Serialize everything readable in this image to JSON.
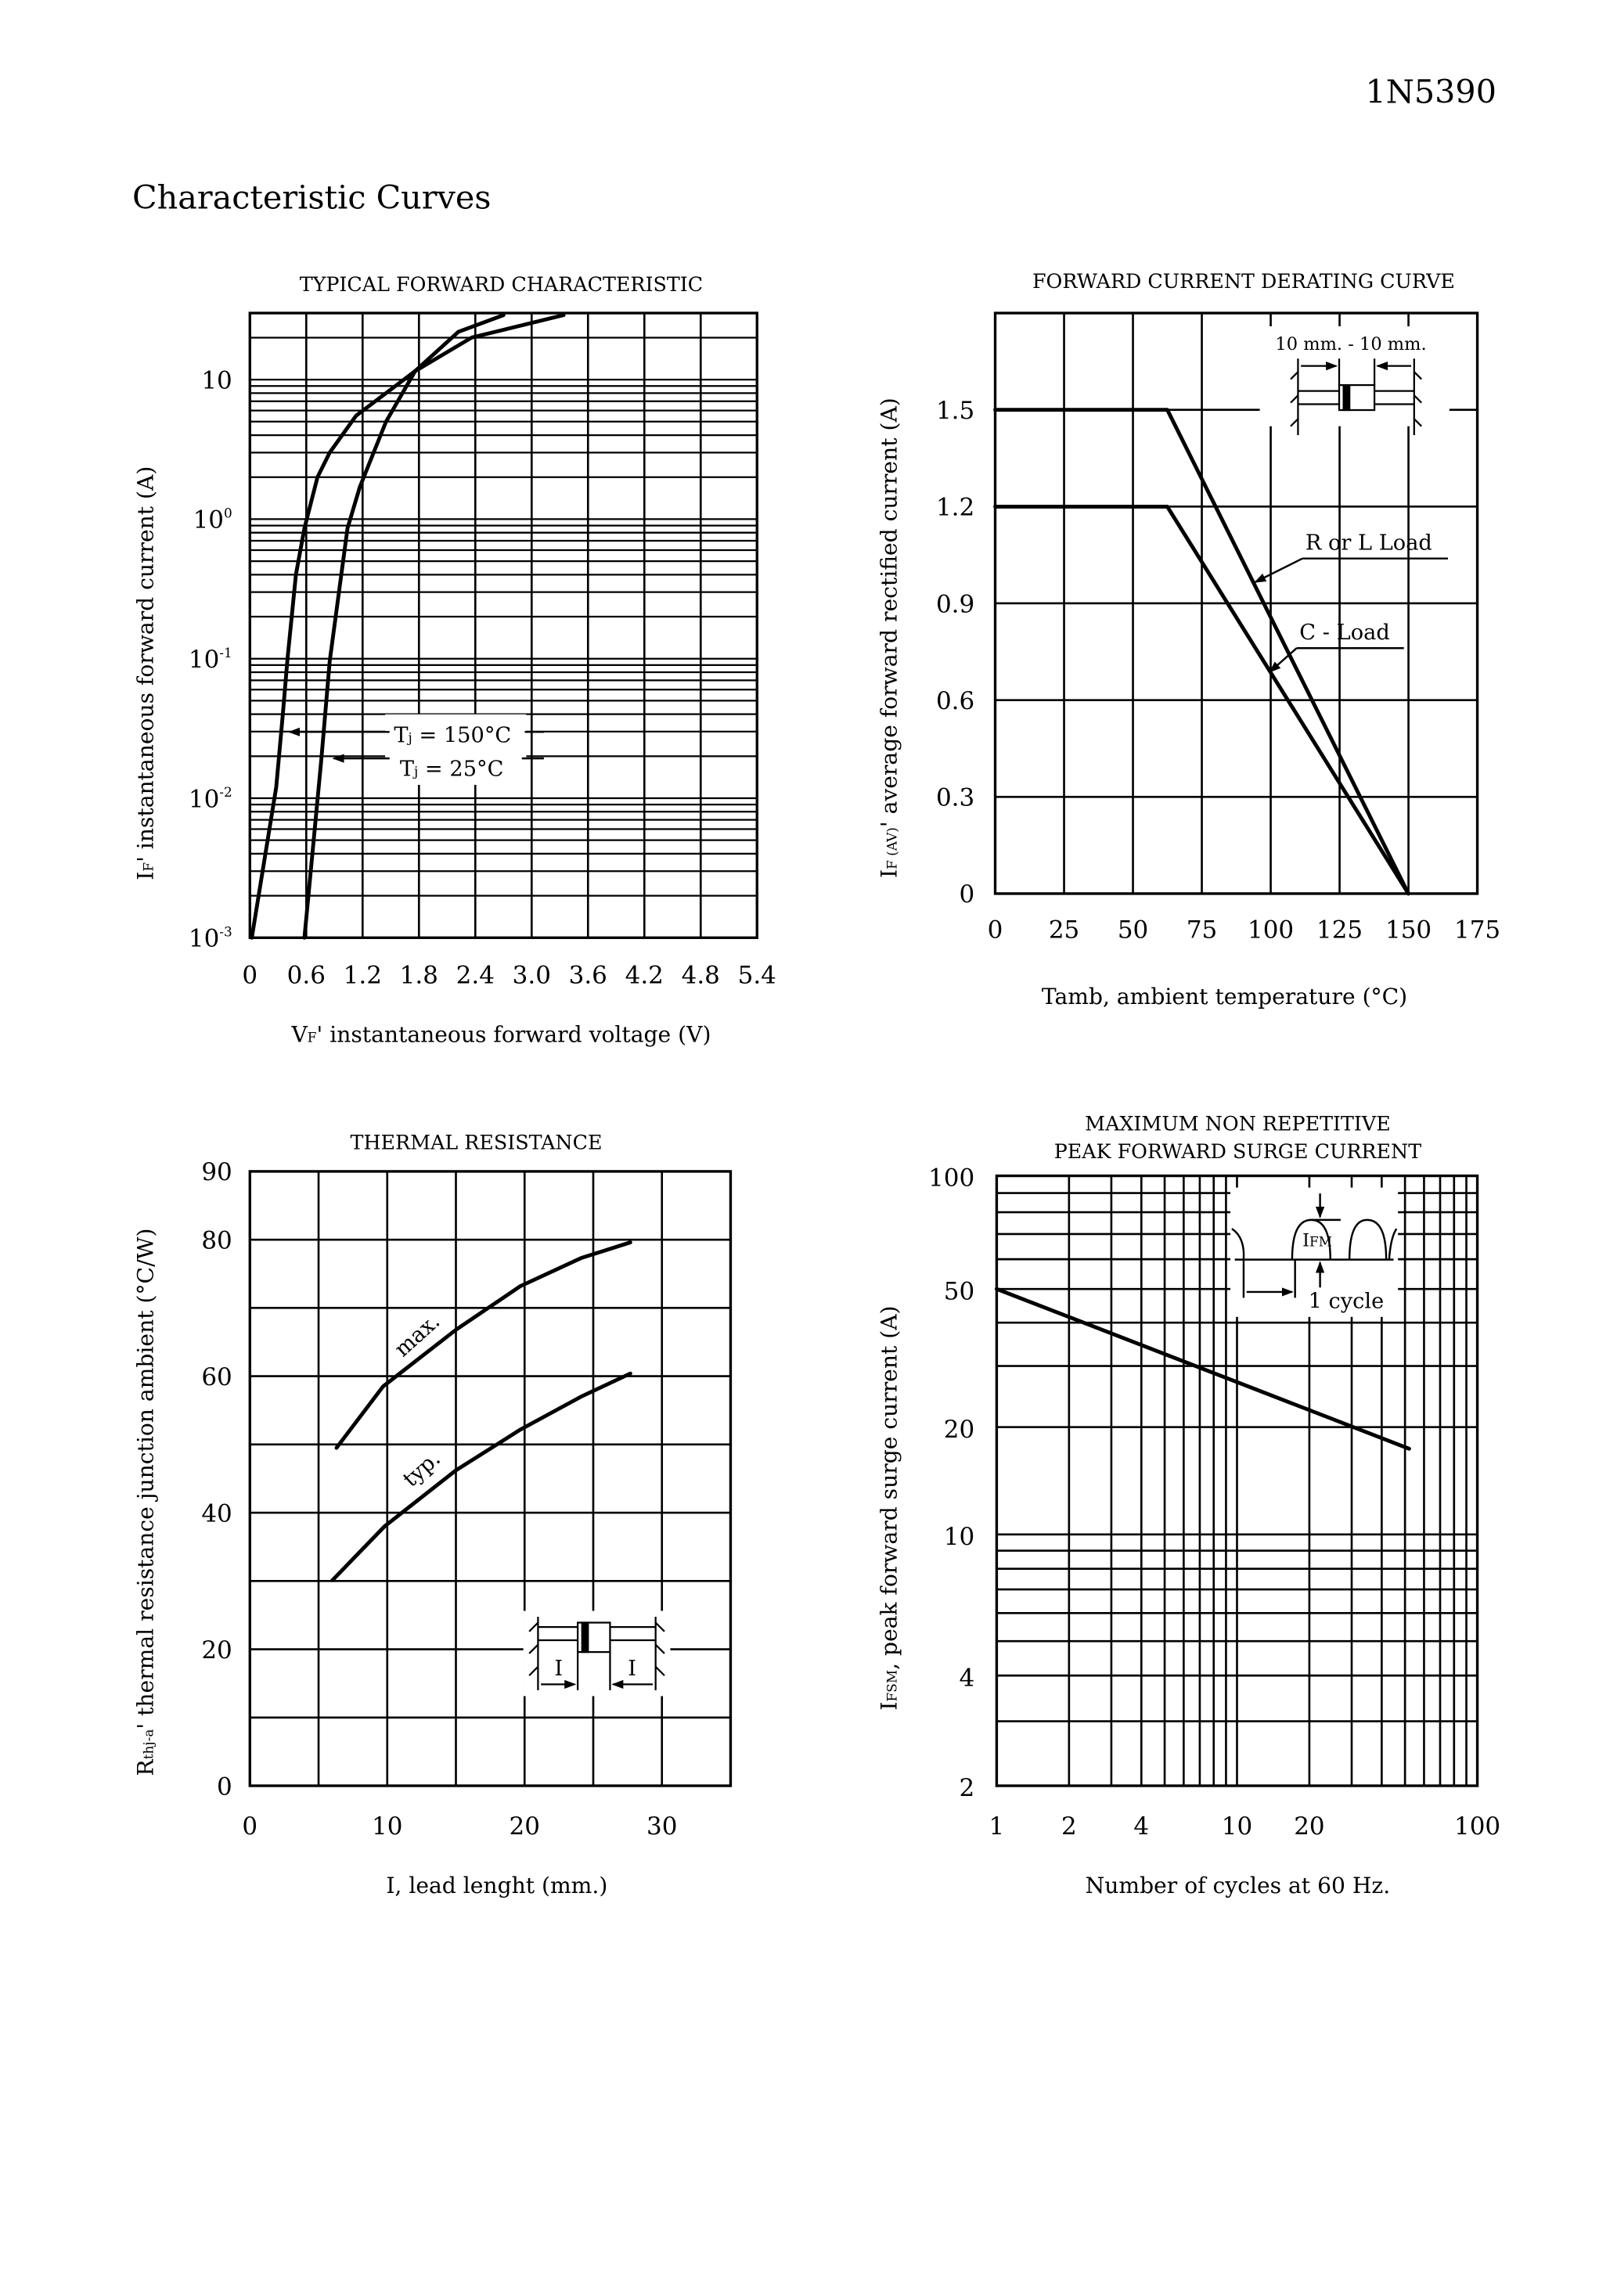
{
  "header": {
    "part_number": "1N5390",
    "section_title": "Characteristic Curves"
  },
  "chart_data": [
    {
      "type": "line",
      "title": "TYPICAL FORWARD CHARACTERISTIC",
      "xlabel": {
        "symbol": "V",
        "sub": "F",
        "text": "' instantaneous forward voltage (V)"
      },
      "ylabel": {
        "symbol": "I",
        "sub": "F",
        "text": "' instantaneous forward current (A)"
      },
      "xscale": "linear",
      "yscale": "log",
      "xlim": [
        0,
        5.4
      ],
      "ylim": [
        0.001,
        30
      ],
      "grid": true,
      "x_ticks": [
        "0",
        "0.6",
        "1.2",
        "1.8",
        "2.4",
        "3.0",
        "3.6",
        "4.2",
        "4.8",
        "5.4"
      ],
      "y_ticks": [
        {
          "value": 10,
          "base": "10",
          "exp": ""
        },
        {
          "value": 1,
          "base": "10",
          "exp": "0"
        },
        {
          "value": 0.1,
          "base": "10",
          "exp": "-1"
        },
        {
          "value": 0.01,
          "base": "10",
          "exp": "-2"
        },
        {
          "value": 0.001,
          "base": "10",
          "exp": "-3"
        }
      ],
      "series": [
        {
          "label": {
            "symbol": "T",
            "sub": "j",
            "text": " = 150°C"
          },
          "points": [
            [
              0.02,
              0.001
            ],
            [
              0.28,
              0.012
            ],
            [
              0.35,
              0.04
            ],
            [
              0.4,
              0.1
            ],
            [
              0.49,
              0.4
            ],
            [
              0.58,
              0.86
            ],
            [
              0.72,
              2.0
            ],
            [
              0.85,
              3.0
            ],
            [
              1.13,
              5.5
            ],
            [
              1.76,
              11.5
            ],
            [
              2.36,
              20
            ],
            [
              3.34,
              29
            ]
          ]
        },
        {
          "label": {
            "symbol": "T",
            "sub": "j",
            "text": "  = 25°C"
          },
          "points": [
            [
              0.58,
              0.001
            ],
            [
              0.76,
              0.019
            ],
            [
              0.85,
              0.096
            ],
            [
              1.04,
              0.86
            ],
            [
              1.17,
              1.7
            ],
            [
              1.45,
              5.0
            ],
            [
              1.76,
              11.5
            ],
            [
              2.22,
              22
            ],
            [
              2.7,
              29
            ]
          ]
        }
      ]
    },
    {
      "type": "line",
      "title": "FORWARD CURRENT DERATING CURVE",
      "xlabel": {
        "text": "Tamb, ambient temperature (°C)"
      },
      "ylabel": {
        "symbol": "I",
        "sub": "F (AV)",
        "text": "' average forward rectified current (A)"
      },
      "xlim": [
        0,
        175
      ],
      "ylim": [
        0,
        1.8
      ],
      "grid": true,
      "x_ticks": [
        "0",
        "25",
        "50",
        "75",
        "100",
        "125",
        "150",
        "175"
      ],
      "y_ticks": [
        "1.5",
        "1.2",
        "0.9",
        "0.6",
        "0.3",
        "0"
      ],
      "inset_text": "10 mm. - 10 mm.",
      "series": [
        {
          "name": "R or L Load",
          "points": [
            [
              0,
              1.5
            ],
            [
              62.5,
              1.5
            ],
            [
              150,
              0
            ]
          ]
        },
        {
          "name": "C - Load",
          "points": [
            [
              0,
              1.2
            ],
            [
              62.5,
              1.2
            ],
            [
              150,
              0
            ]
          ]
        }
      ]
    },
    {
      "type": "line",
      "title": "THERMAL RESISTANCE",
      "xlabel": {
        "text": "I, lead lenght (mm.)"
      },
      "ylabel": {
        "symbol": "R",
        "sub": "thj-a",
        "text": "' thermal resistance junction ambient (°C/W)"
      },
      "xlim": [
        0,
        35
      ],
      "ylim": [
        0,
        90
      ],
      "grid": true,
      "x_ticks": [
        "0",
        "10",
        "20",
        "30"
      ],
      "y_ticks": [
        "90",
        "80",
        "60",
        "40",
        "20",
        "0"
      ],
      "inset_labels": [
        "I",
        "I"
      ],
      "series": [
        {
          "name": "max.",
          "points": [
            [
              6.3,
              49.5
            ],
            [
              9.7,
              58.5
            ],
            [
              15,
              66.8
            ],
            [
              19.7,
              73.2
            ],
            [
              24.1,
              77.3
            ],
            [
              27.7,
              79.6
            ]
          ]
        },
        {
          "name": "typ.",
          "points": [
            [
              6.0,
              30.1
            ],
            [
              9.8,
              38
            ],
            [
              15,
              46.2
            ],
            [
              19.7,
              52.2
            ],
            [
              24.1,
              57
            ],
            [
              27.7,
              60.4
            ]
          ]
        }
      ]
    },
    {
      "type": "line",
      "title_lines": [
        "MAXIMUM  NON REPETITIVE",
        "PEAK FORWARD SURGE CURRENT"
      ],
      "xlabel": {
        "text": "Number of cycles at 60 Hz."
      },
      "ylabel": {
        "symbol": "I",
        "sub": "FSM",
        "text": ", peak forward  surge current (A)"
      },
      "xscale": "log",
      "yscale": "log",
      "xlim": [
        1,
        100
      ],
      "ylim": [
        2,
        100
      ],
      "grid": true,
      "x_ticks": [
        "1",
        "2",
        "4",
        "10",
        "20",
        "100"
      ],
      "y_ticks": [
        "100",
        "50",
        "20",
        "10",
        "4",
        "2"
      ],
      "inset": {
        "peak_symbol": "I",
        "peak_sub": "FM",
        "period_label": "1 cycle"
      },
      "series": [
        {
          "points": [
            [
              1,
              50
            ],
            [
              52,
              17.4
            ]
          ]
        }
      ]
    }
  ]
}
